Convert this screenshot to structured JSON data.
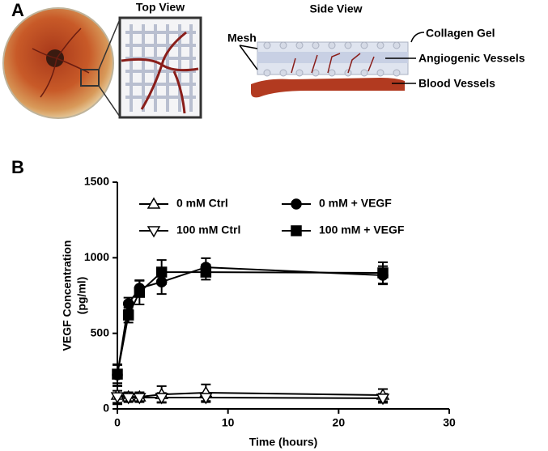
{
  "panel_a": {
    "label": "A",
    "top_view": "Top View",
    "side_view": "Side View",
    "mesh": "Mesh",
    "collagen_gel": "Collagen Gel",
    "angiogenic_vessels": "Angiogenic Vessels",
    "blood_vessels": "Blood Vessels"
  },
  "panel_b_label": "B",
  "chart_data": {
    "type": "line",
    "xlabel": "Time (hours)",
    "ylabel": [
      "VEGF Concentration",
      "(pg/ml)"
    ],
    "x": [
      0,
      1,
      2,
      4,
      8,
      24
    ],
    "xlim": [
      0,
      30
    ],
    "xticks": [
      0,
      10,
      20,
      30
    ],
    "ylim": [
      0,
      1500
    ],
    "yticks": [
      0,
      500,
      1000,
      1500
    ],
    "series": [
      {
        "name": "0 mM Ctrl",
        "color": "#000000",
        "marker": "triangle-up",
        "values": [
          91,
          80,
          80,
          96,
          107,
          91
        ],
        "errors": [
          60,
          30,
          30,
          55,
          55,
          40
        ]
      },
      {
        "name": "100 mM Ctrl",
        "color": "#000000",
        "marker": "triangle-down",
        "values": [
          80,
          75,
          75,
          75,
          75,
          70
        ],
        "errors": [
          40,
          30,
          30,
          30,
          30,
          30
        ]
      },
      {
        "name": "0 mM + VEGF",
        "color": "#000000",
        "marker": "circle",
        "values": [
          225,
          696,
          798,
          840,
          937,
          884
        ],
        "errors": [
          70,
          40,
          50,
          80,
          60,
          60
        ]
      },
      {
        "name": "100 mM + VEGF",
        "color": "#000000",
        "marker": "square",
        "values": [
          230,
          621,
          771,
          905,
          905,
          900
        ],
        "errors": [
          60,
          50,
          80,
          80,
          50,
          70
        ]
      }
    ]
  }
}
